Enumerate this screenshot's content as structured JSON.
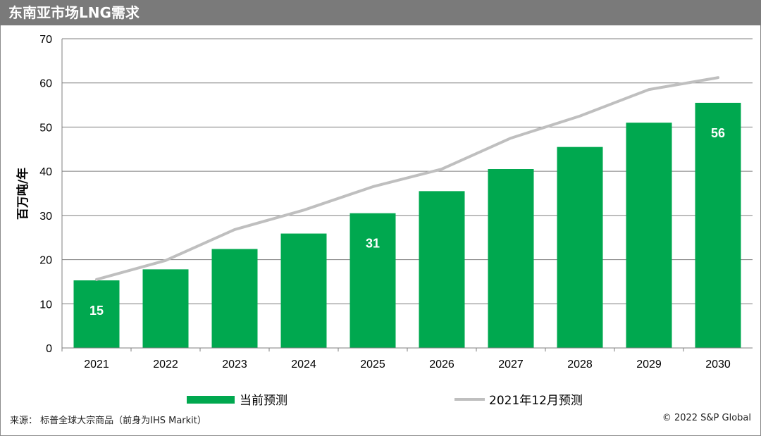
{
  "title": "东南亚市场LNG需求",
  "footer": {
    "source": "来源： 标普全球大宗商品（前身为IHS Markit）",
    "copyright": "© 2022 S&P Global"
  },
  "colors": {
    "bar": "#00a84f",
    "line": "#bfbfbf",
    "title_bg": "#7a7a7a"
  },
  "chart_data": {
    "type": "bar",
    "ylabel": "百万吨/年",
    "xlabel": "",
    "ylim": [
      0,
      70
    ],
    "yticks": [
      "0",
      "10",
      "20",
      "30",
      "40",
      "50",
      "60",
      "70"
    ],
    "grid": true,
    "legend_position": "bottom",
    "categories": [
      "2021",
      "2022",
      "2023",
      "2024",
      "2025",
      "2026",
      "2027",
      "2028",
      "2029",
      "2030"
    ],
    "series": [
      {
        "name": "当前预测",
        "type": "bar",
        "values": [
          15.3,
          17.8,
          22.4,
          25.9,
          30.5,
          35.5,
          40.5,
          45.5,
          51.0,
          55.5
        ],
        "data_labels": [
          "15",
          "",
          "",
          "",
          "31",
          "",
          "",
          "",
          "",
          "56"
        ]
      },
      {
        "name": "2021年12月预测",
        "type": "line",
        "values": [
          15.5,
          19.8,
          26.8,
          31.2,
          36.5,
          40.5,
          47.5,
          52.5,
          58.5,
          61.2
        ]
      }
    ]
  }
}
